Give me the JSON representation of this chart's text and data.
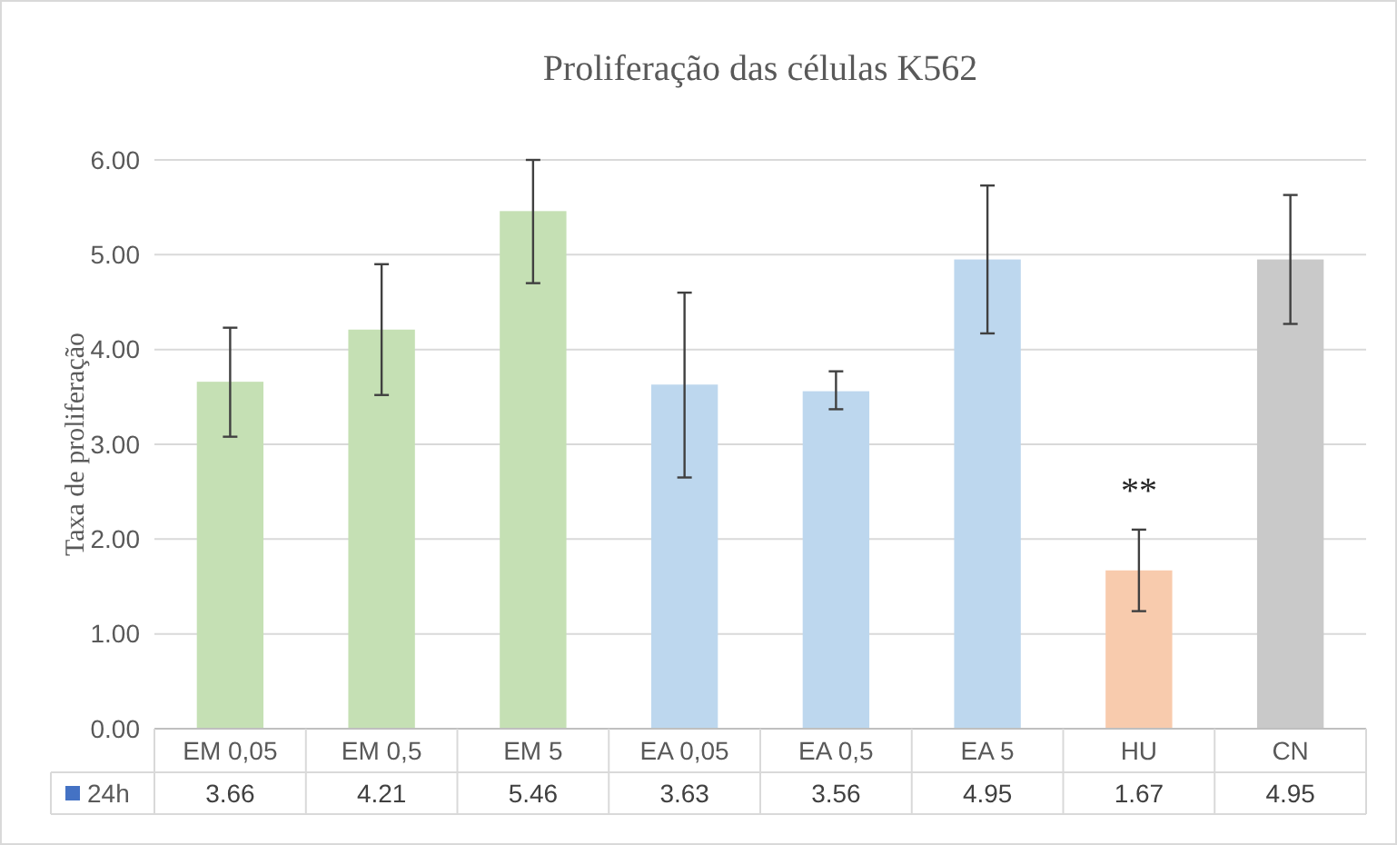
{
  "chart_data": {
    "type": "bar",
    "title": "Proliferação das células K562",
    "ylabel": "Taxa de proliferação",
    "categories": [
      "EM 0,05",
      "EM 0,5",
      "EM 5",
      "EA 0,05",
      "EA 0,5",
      "EA 5",
      "HU",
      "CN"
    ],
    "series": [
      {
        "name": "24h",
        "color": "#4472c4",
        "colors": [
          "#c5e0b4",
          "#c5e0b4",
          "#c5e0b4",
          "#bdd7ee",
          "#bdd7ee",
          "#bdd7ee",
          "#f8cbad",
          "#c9c9c9"
        ],
        "values": [
          3.66,
          4.21,
          5.46,
          3.63,
          3.56,
          4.95,
          1.67,
          4.95
        ],
        "errors": [
          [
            3.08,
            4.23
          ],
          [
            3.52,
            4.9
          ],
          [
            4.7,
            6.0
          ],
          [
            2.65,
            4.6
          ],
          [
            3.37,
            3.77
          ],
          [
            4.17,
            5.73
          ],
          [
            1.24,
            2.1
          ],
          [
            4.27,
            5.63
          ]
        ]
      }
    ],
    "ylim": [
      0,
      6
    ],
    "yticks": [
      {
        "value": 0,
        "label": "0.00"
      },
      {
        "value": 1,
        "label": "1.00"
      },
      {
        "value": 2,
        "label": "2.00"
      },
      {
        "value": 3,
        "label": "3.00"
      },
      {
        "value": 4,
        "label": "4.00"
      },
      {
        "value": 5,
        "label": "5.00"
      },
      {
        "value": 6,
        "label": "6.00"
      }
    ],
    "grid": "y",
    "data_labels": true,
    "legend": "bottom",
    "annotations": [
      {
        "text": "**",
        "x": "HU",
        "y": 1.67
      }
    ]
  }
}
